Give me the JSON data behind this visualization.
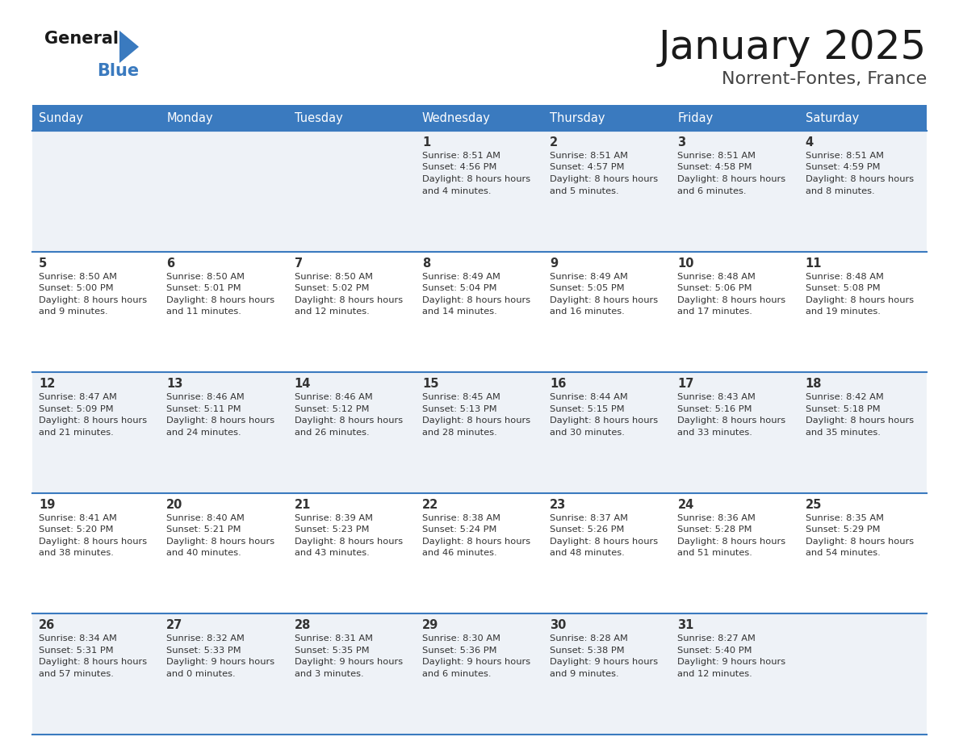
{
  "title": "January 2025",
  "subtitle": "Norrent-Fontes, France",
  "header_color": "#3a7abf",
  "header_text_color": "#ffffff",
  "cell_bg_odd": "#eef2f7",
  "cell_bg_even": "#ffffff",
  "day_number_color": "#333333",
  "text_color": "#333333",
  "separator_color": "#3a7abf",
  "days_of_week": [
    "Sunday",
    "Monday",
    "Tuesday",
    "Wednesday",
    "Thursday",
    "Friday",
    "Saturday"
  ],
  "logo_general_color": "#1a1a1a",
  "logo_blue_color": "#3a7abf",
  "title_color": "#1a1a1a",
  "subtitle_color": "#444444",
  "calendar": [
    [
      {
        "day": "",
        "sunrise": "",
        "sunset": "",
        "daylight": ""
      },
      {
        "day": "",
        "sunrise": "",
        "sunset": "",
        "daylight": ""
      },
      {
        "day": "",
        "sunrise": "",
        "sunset": "",
        "daylight": ""
      },
      {
        "day": "1",
        "sunrise": "8:51 AM",
        "sunset": "4:56 PM",
        "daylight": "8 hours and 4 minutes."
      },
      {
        "day": "2",
        "sunrise": "8:51 AM",
        "sunset": "4:57 PM",
        "daylight": "8 hours and 5 minutes."
      },
      {
        "day": "3",
        "sunrise": "8:51 AM",
        "sunset": "4:58 PM",
        "daylight": "8 hours and 6 minutes."
      },
      {
        "day": "4",
        "sunrise": "8:51 AM",
        "sunset": "4:59 PM",
        "daylight": "8 hours and 8 minutes."
      }
    ],
    [
      {
        "day": "5",
        "sunrise": "8:50 AM",
        "sunset": "5:00 PM",
        "daylight": "8 hours and 9 minutes."
      },
      {
        "day": "6",
        "sunrise": "8:50 AM",
        "sunset": "5:01 PM",
        "daylight": "8 hours and 11 minutes."
      },
      {
        "day": "7",
        "sunrise": "8:50 AM",
        "sunset": "5:02 PM",
        "daylight": "8 hours and 12 minutes."
      },
      {
        "day": "8",
        "sunrise": "8:49 AM",
        "sunset": "5:04 PM",
        "daylight": "8 hours and 14 minutes."
      },
      {
        "day": "9",
        "sunrise": "8:49 AM",
        "sunset": "5:05 PM",
        "daylight": "8 hours and 16 minutes."
      },
      {
        "day": "10",
        "sunrise": "8:48 AM",
        "sunset": "5:06 PM",
        "daylight": "8 hours and 17 minutes."
      },
      {
        "day": "11",
        "sunrise": "8:48 AM",
        "sunset": "5:08 PM",
        "daylight": "8 hours and 19 minutes."
      }
    ],
    [
      {
        "day": "12",
        "sunrise": "8:47 AM",
        "sunset": "5:09 PM",
        "daylight": "8 hours and 21 minutes."
      },
      {
        "day": "13",
        "sunrise": "8:46 AM",
        "sunset": "5:11 PM",
        "daylight": "8 hours and 24 minutes."
      },
      {
        "day": "14",
        "sunrise": "8:46 AM",
        "sunset": "5:12 PM",
        "daylight": "8 hours and 26 minutes."
      },
      {
        "day": "15",
        "sunrise": "8:45 AM",
        "sunset": "5:13 PM",
        "daylight": "8 hours and 28 minutes."
      },
      {
        "day": "16",
        "sunrise": "8:44 AM",
        "sunset": "5:15 PM",
        "daylight": "8 hours and 30 minutes."
      },
      {
        "day": "17",
        "sunrise": "8:43 AM",
        "sunset": "5:16 PM",
        "daylight": "8 hours and 33 minutes."
      },
      {
        "day": "18",
        "sunrise": "8:42 AM",
        "sunset": "5:18 PM",
        "daylight": "8 hours and 35 minutes."
      }
    ],
    [
      {
        "day": "19",
        "sunrise": "8:41 AM",
        "sunset": "5:20 PM",
        "daylight": "8 hours and 38 minutes."
      },
      {
        "day": "20",
        "sunrise": "8:40 AM",
        "sunset": "5:21 PM",
        "daylight": "8 hours and 40 minutes."
      },
      {
        "day": "21",
        "sunrise": "8:39 AM",
        "sunset": "5:23 PM",
        "daylight": "8 hours and 43 minutes."
      },
      {
        "day": "22",
        "sunrise": "8:38 AM",
        "sunset": "5:24 PM",
        "daylight": "8 hours and 46 minutes."
      },
      {
        "day": "23",
        "sunrise": "8:37 AM",
        "sunset": "5:26 PM",
        "daylight": "8 hours and 48 minutes."
      },
      {
        "day": "24",
        "sunrise": "8:36 AM",
        "sunset": "5:28 PM",
        "daylight": "8 hours and 51 minutes."
      },
      {
        "day": "25",
        "sunrise": "8:35 AM",
        "sunset": "5:29 PM",
        "daylight": "8 hours and 54 minutes."
      }
    ],
    [
      {
        "day": "26",
        "sunrise": "8:34 AM",
        "sunset": "5:31 PM",
        "daylight": "8 hours and 57 minutes."
      },
      {
        "day": "27",
        "sunrise": "8:32 AM",
        "sunset": "5:33 PM",
        "daylight": "9 hours and 0 minutes."
      },
      {
        "day": "28",
        "sunrise": "8:31 AM",
        "sunset": "5:35 PM",
        "daylight": "9 hours and 3 minutes."
      },
      {
        "day": "29",
        "sunrise": "8:30 AM",
        "sunset": "5:36 PM",
        "daylight": "9 hours and 6 minutes."
      },
      {
        "day": "30",
        "sunrise": "8:28 AM",
        "sunset": "5:38 PM",
        "daylight": "9 hours and 9 minutes."
      },
      {
        "day": "31",
        "sunrise": "8:27 AM",
        "sunset": "5:40 PM",
        "daylight": "9 hours and 12 minutes."
      },
      {
        "day": "",
        "sunrise": "",
        "sunset": "",
        "daylight": ""
      }
    ]
  ]
}
